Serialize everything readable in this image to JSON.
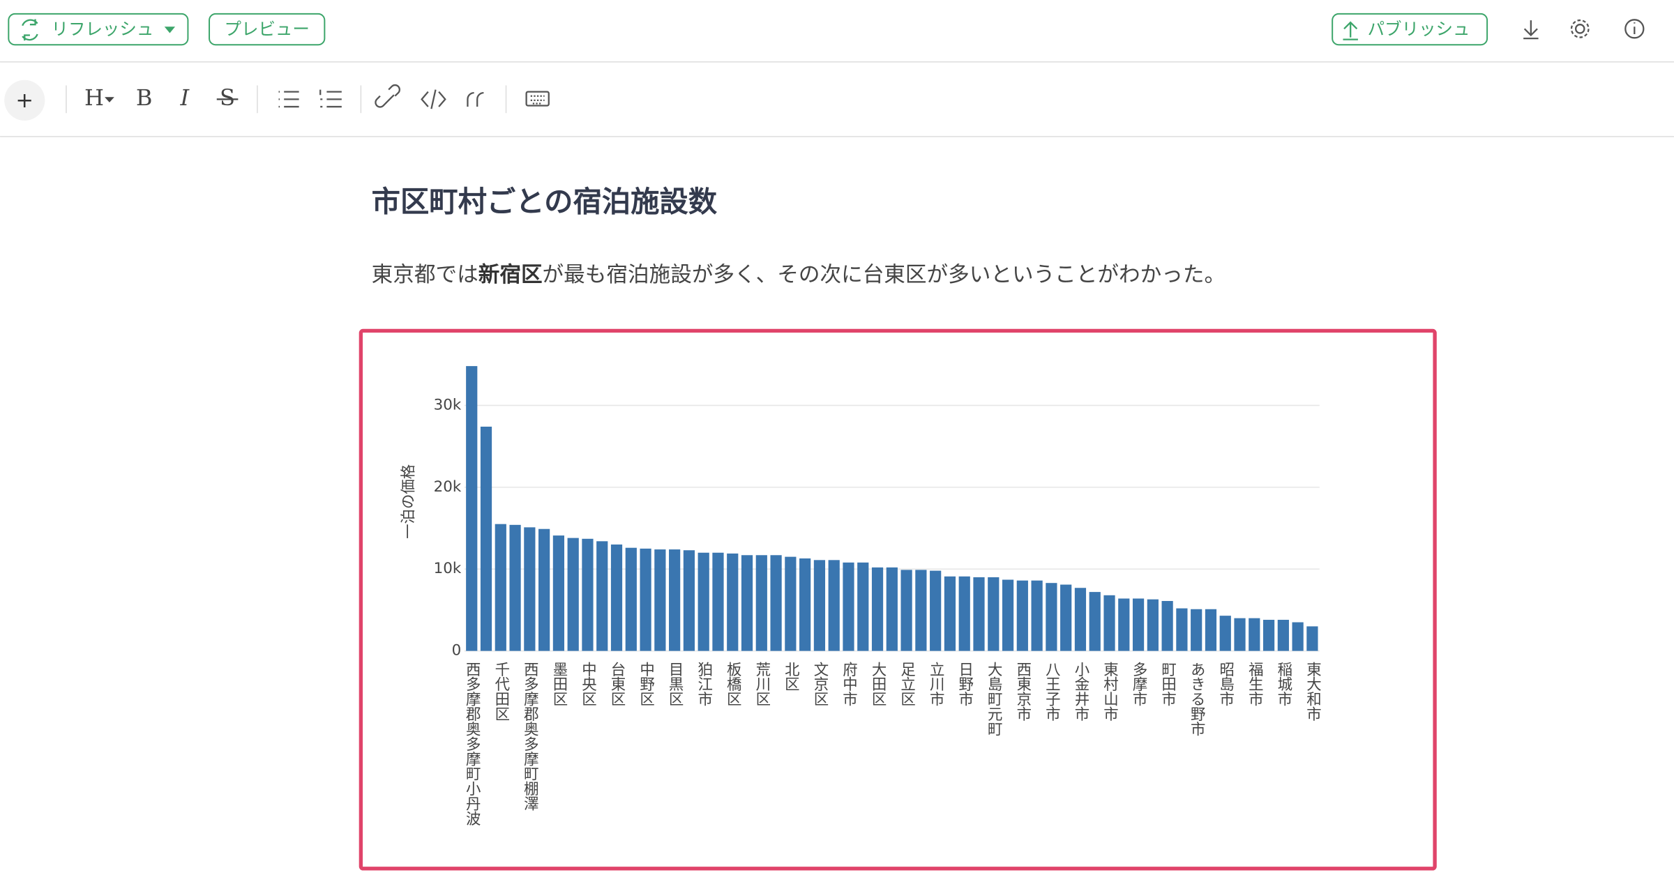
{
  "toolbar": {
    "refresh": "リフレッシュ",
    "preview": "プレビュー",
    "publish": "パブリッシュ",
    "format": [
      "+",
      "H",
      "B",
      "I",
      "S"
    ]
  },
  "document": {
    "heading": "市区町村ごとの宿泊施設数",
    "paragraph": [
      "東京都では",
      "新宿区",
      "が最も宿泊施設が多く、その次に台東区が多いということがわかった。"
    ]
  },
  "chart_data": {
    "type": "bar",
    "y_label": "一泊の価格",
    "color": "#3a76b0",
    "grid": true,
    "ylim": [
      0,
      35000
    ],
    "yticks": [
      0,
      {
        "value": 10000,
        "label": "10k"
      },
      {
        "value": 20000,
        "label": "20k"
      },
      {
        "value": 30000,
        "label": "30k"
      }
    ],
    "categories": [
      "西多摩郡奥多摩町小丹波",
      null,
      "千代田区",
      null,
      "西多摩郡奥多摩町棚澤",
      null,
      "墨田区",
      null,
      "中央区",
      null,
      "台東区",
      null,
      "中野区",
      null,
      "目黒区",
      null,
      "狛江市",
      null,
      "板橋区",
      null,
      "荒川区",
      null,
      "北区",
      null,
      "文京区",
      null,
      "府中市",
      null,
      "大田区",
      null,
      "足立区",
      null,
      "立川市",
      null,
      "日野市",
      null,
      "大島町元町",
      null,
      "西東京市",
      null,
      "八王子市",
      null,
      "小金井市",
      null,
      "東村山市",
      null,
      "多摩市",
      null,
      "町田市",
      null,
      "あきる野市",
      null,
      "昭島市",
      null,
      "福生市",
      null,
      "稲城市",
      null,
      "東大和市"
    ],
    "values": [
      34800,
      27400,
      15500,
      15400,
      15100,
      14900,
      14100,
      13800,
      13700,
      13400,
      13000,
      12600,
      12500,
      12400,
      12400,
      12300,
      12000,
      12000,
      11900,
      11700,
      11700,
      11700,
      11500,
      11300,
      11100,
      11100,
      10800,
      10800,
      10200,
      10200,
      9900,
      9900,
      9800,
      9100,
      9100,
      9000,
      9000,
      8700,
      8600,
      8600,
      8300,
      8100,
      7700,
      7200,
      6800,
      6400,
      6400,
      6300,
      6100,
      5200,
      5100,
      5100,
      4300,
      4000,
      4000,
      3800,
      3800,
      3500,
      3000
    ]
  }
}
